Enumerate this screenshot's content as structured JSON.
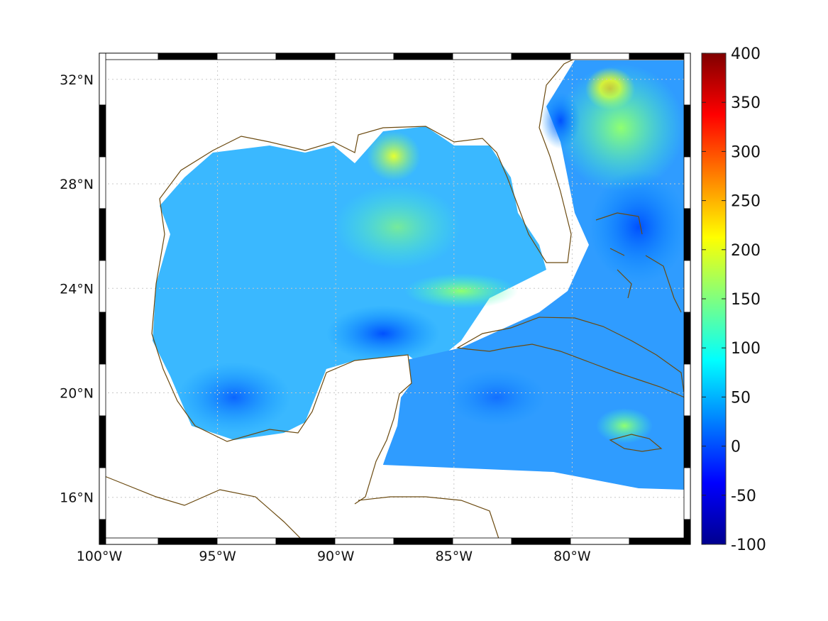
{
  "map": {
    "x_ticks": [
      "100°W",
      "95°W",
      "90°W",
      "85°W",
      "80°W"
    ],
    "y_ticks": [
      "32°N",
      "28°N",
      "24°N",
      "20°N",
      "16°N"
    ],
    "lon_values": [
      -100,
      -95,
      -90,
      -85,
      -80
    ],
    "lat_values": [
      32,
      28,
      24,
      20,
      16
    ],
    "lon_range": [
      -100,
      -75
    ],
    "lat_range": [
      14.2,
      33
    ],
    "grid": true,
    "coastline_color": "#6b4a10"
  },
  "colorbar": {
    "ticks": [
      "400",
      "350",
      "300",
      "250",
      "200",
      "150",
      "100",
      "50",
      "0",
      "-50",
      "-100"
    ],
    "range": [
      -100,
      400
    ],
    "colormap": "jet"
  }
}
